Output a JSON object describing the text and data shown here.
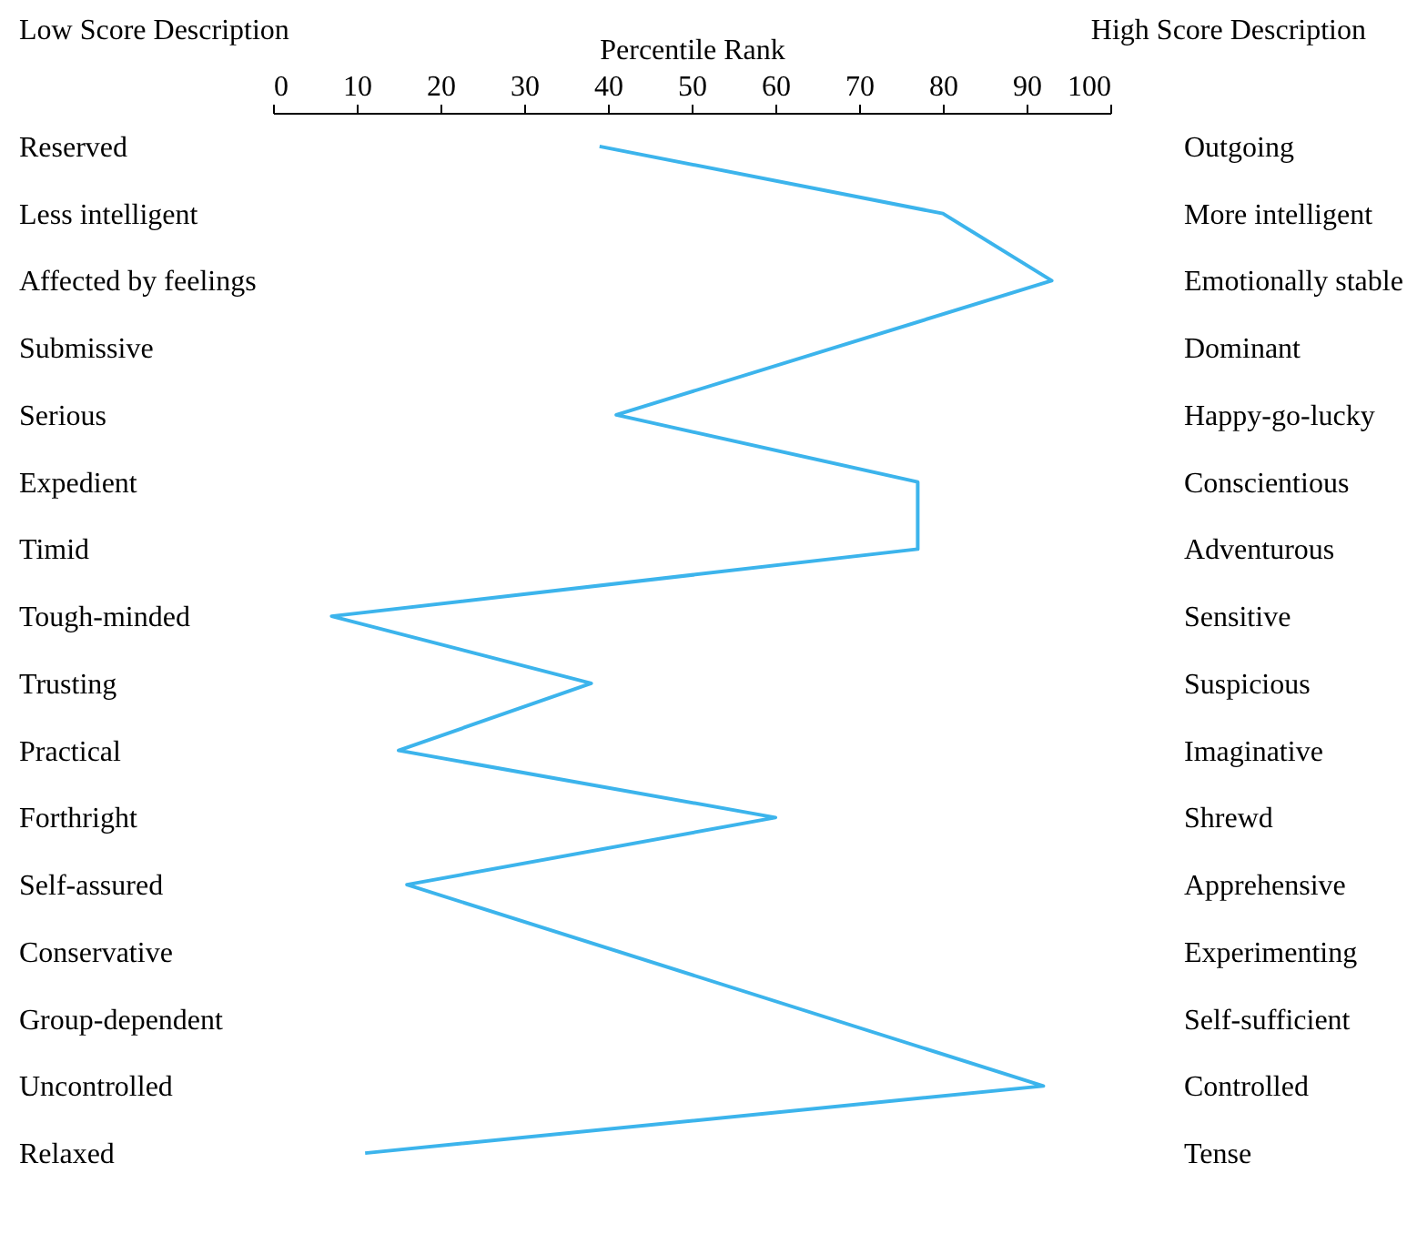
{
  "chart_data": {
    "type": "line",
    "orientation": "horizontal",
    "xlabel": "Percentile Rank",
    "ylabel": "Low Score Description",
    "y2label": "High Score Description",
    "categories": [
      "Reserved",
      "Less intelligent",
      "Affected by feelings",
      "Submissive",
      "Serious",
      "Expedient",
      "Timid",
      "Tough-minded",
      "Trusting",
      "Practical",
      "Forthright",
      "Self-assured",
      "Conservative",
      "Group-dependent",
      "Uncontrolled",
      "Relaxed"
    ],
    "y2_categories": [
      "Outgoing",
      "More intelligent",
      "Emotionally stable",
      "Dominant",
      "Happy-go-lucky",
      "Conscientious",
      "Adventurous",
      "Sensitive",
      "Suspicious",
      "Imaginative",
      "Shrewd",
      "Apprehensive",
      "Experimenting",
      "Self-sufficient",
      "Controlled",
      "Tense"
    ],
    "series": [
      {
        "color": "#3cb4ec",
        "values": [
          39,
          80,
          93,
          null,
          41,
          77,
          77,
          7,
          38,
          15,
          60,
          16,
          null,
          null,
          92,
          11
        ]
      }
    ],
    "xlim": [
      0,
      100
    ],
    "xticks": [
      0,
      10,
      20,
      30,
      40,
      50,
      60,
      70,
      80,
      90,
      100
    ],
    "grid": false,
    "marker": "none",
    "line_style": "solid"
  }
}
